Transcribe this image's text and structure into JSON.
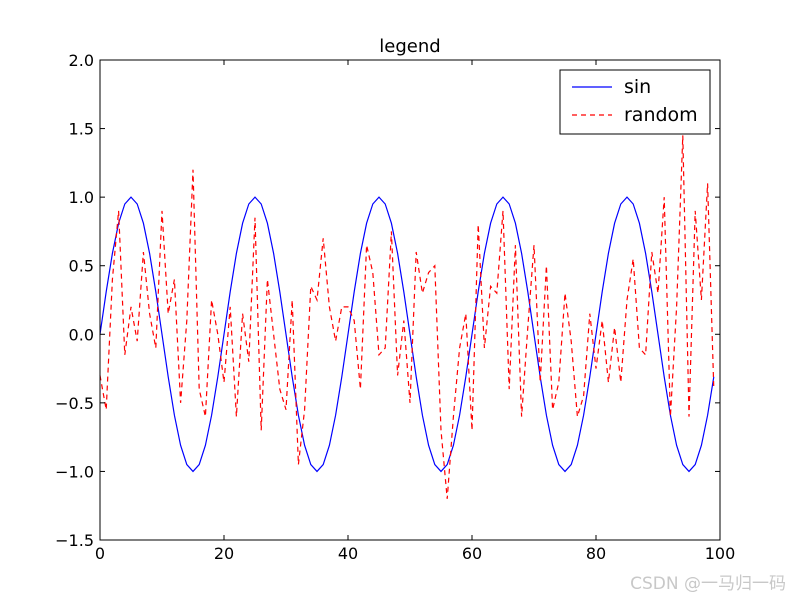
{
  "chart_data": {
    "type": "line",
    "title": "legend",
    "xlabel": "",
    "ylabel": "",
    "xlim": [
      0,
      100
    ],
    "ylim": [
      -1.5,
      2.0
    ],
    "xticks": [
      "0",
      "20",
      "40",
      "60",
      "80",
      "100"
    ],
    "yticks": [
      "−1.5",
      "−1.0",
      "−0.5",
      "0.0",
      "0.5",
      "1.0",
      "1.5",
      "2.0"
    ],
    "legend_position": "top-right",
    "grid": false,
    "series": [
      {
        "name": "sin",
        "color": "#0000ff",
        "style": "solid",
        "x": [
          0,
          1,
          2,
          3,
          4,
          5,
          6,
          7,
          8,
          9,
          10,
          11,
          12,
          13,
          14,
          15,
          16,
          17,
          18,
          19,
          20,
          21,
          22,
          23,
          24,
          25,
          26,
          27,
          28,
          29,
          30,
          31,
          32,
          33,
          34,
          35,
          36,
          37,
          38,
          39,
          40,
          41,
          42,
          43,
          44,
          45,
          46,
          47,
          48,
          49,
          50,
          51,
          52,
          53,
          54,
          55,
          56,
          57,
          58,
          59,
          60,
          61,
          62,
          63,
          64,
          65,
          66,
          67,
          68,
          69,
          70,
          71,
          72,
          73,
          74,
          75,
          76,
          77,
          78,
          79,
          80,
          81,
          82,
          83,
          84,
          85,
          86,
          87,
          88,
          89,
          90,
          91,
          92,
          93,
          94,
          95,
          96,
          97,
          98,
          99
        ],
        "y": [
          0.0,
          0.31,
          0.59,
          0.81,
          0.95,
          1.0,
          0.95,
          0.81,
          0.59,
          0.31,
          0.0,
          -0.31,
          -0.59,
          -0.81,
          -0.95,
          -1.0,
          -0.95,
          -0.81,
          -0.59,
          -0.31,
          0.0,
          0.31,
          0.59,
          0.81,
          0.95,
          1.0,
          0.95,
          0.81,
          0.59,
          0.31,
          0.0,
          -0.31,
          -0.59,
          -0.81,
          -0.95,
          -1.0,
          -0.95,
          -0.81,
          -0.59,
          -0.31,
          0.0,
          0.31,
          0.59,
          0.81,
          0.95,
          1.0,
          0.95,
          0.81,
          0.59,
          0.31,
          0.0,
          -0.31,
          -0.59,
          -0.81,
          -0.95,
          -1.0,
          -0.95,
          -0.81,
          -0.59,
          -0.31,
          0.0,
          0.31,
          0.59,
          0.81,
          0.95,
          1.0,
          0.95,
          0.81,
          0.59,
          0.31,
          0.0,
          -0.31,
          -0.59,
          -0.81,
          -0.95,
          -1.0,
          -0.95,
          -0.81,
          -0.59,
          -0.31,
          0.0,
          0.31,
          0.59,
          0.81,
          0.95,
          1.0,
          0.95,
          0.81,
          0.59,
          0.31,
          0.0,
          -0.31,
          -0.59,
          -0.81,
          -0.95,
          -1.0,
          -0.95,
          -0.81,
          -0.59,
          -0.31
        ]
      },
      {
        "name": "random",
        "color": "#ff0000",
        "style": "dashed",
        "x": [
          0,
          1,
          2,
          3,
          4,
          5,
          6,
          7,
          8,
          9,
          10,
          11,
          12,
          13,
          14,
          15,
          16,
          17,
          18,
          19,
          20,
          21,
          22,
          23,
          24,
          25,
          26,
          27,
          28,
          29,
          30,
          31,
          32,
          33,
          34,
          35,
          36,
          37,
          38,
          39,
          40,
          41,
          42,
          43,
          44,
          45,
          46,
          47,
          48,
          49,
          50,
          51,
          52,
          53,
          54,
          55,
          56,
          57,
          58,
          59,
          60,
          61,
          62,
          63,
          64,
          65,
          66,
          67,
          68,
          69,
          70,
          71,
          72,
          73,
          74,
          75,
          76,
          77,
          78,
          79,
          80,
          81,
          82,
          83,
          84,
          85,
          86,
          87,
          88,
          89,
          90,
          91,
          92,
          93,
          94,
          95,
          96,
          97,
          98,
          99
        ],
        "y": [
          -0.3,
          -0.55,
          0.4,
          0.9,
          -0.15,
          0.2,
          -0.05,
          0.6,
          0.15,
          -0.1,
          0.9,
          0.15,
          0.4,
          -0.5,
          0.1,
          1.2,
          -0.4,
          -0.6,
          0.25,
          0.0,
          -0.35,
          0.2,
          -0.6,
          0.15,
          -0.2,
          0.85,
          -0.7,
          0.4,
          0.0,
          -0.4,
          -0.55,
          0.25,
          -0.95,
          -0.55,
          0.35,
          0.25,
          0.7,
          0.2,
          -0.05,
          0.2,
          0.2,
          0.1,
          -0.4,
          0.65,
          0.45,
          -0.15,
          -0.1,
          0.75,
          -0.3,
          0.1,
          -0.5,
          0.6,
          0.3,
          0.45,
          0.5,
          -0.7,
          -1.2,
          -0.6,
          -0.1,
          0.15,
          -0.7,
          0.8,
          -0.1,
          0.35,
          0.3,
          0.9,
          -0.4,
          0.65,
          -0.6,
          0.05,
          0.65,
          -0.35,
          0.5,
          -0.55,
          -0.35,
          0.3,
          -0.05,
          -0.6,
          -0.45,
          0.15,
          -0.25,
          0.1,
          -0.35,
          0.05,
          -0.35,
          0.25,
          0.55,
          -0.1,
          -0.15,
          0.6,
          0.3,
          1.0,
          -0.6,
          0.2,
          1.45,
          -0.6,
          0.9,
          0.25,
          1.1,
          -0.4
        ]
      }
    ]
  },
  "watermark": "CSDN @一马归一码"
}
